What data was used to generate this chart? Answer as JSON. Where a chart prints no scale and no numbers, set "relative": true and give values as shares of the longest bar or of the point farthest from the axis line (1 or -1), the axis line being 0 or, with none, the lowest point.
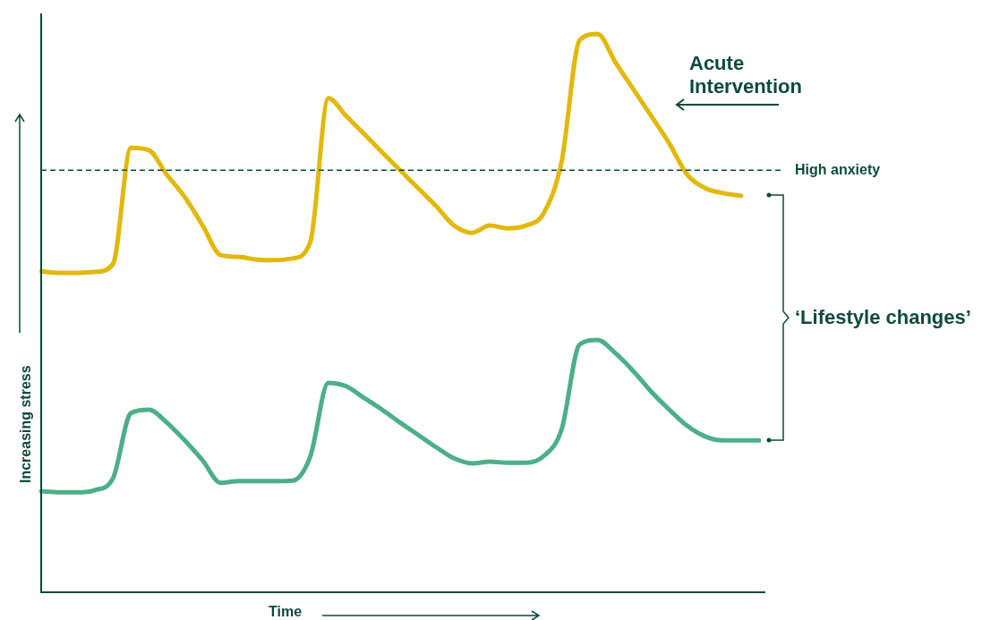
{
  "chart_data": {
    "type": "line",
    "relative": true,
    "xlabel": "Time",
    "ylabel": "Increasing stress",
    "categories": [
      null,
      null,
      null,
      null,
      null,
      null,
      null,
      null,
      null,
      null,
      null,
      null,
      null,
      null,
      null,
      null,
      null,
      null,
      null,
      null,
      null,
      null,
      null,
      null,
      null,
      null,
      null,
      null,
      null,
      null,
      null,
      null,
      null,
      null,
      null,
      null,
      null,
      null,
      null,
      null,
      null
    ],
    "series": [
      {
        "color": "#e2b80a",
        "values": [
          0.575,
          0.572,
          0.572,
          0.574,
          0.588,
          0.796,
          0.792,
          0.748,
          0.708,
          0.657,
          0.604,
          0.601,
          0.596,
          0.595,
          0.598,
          0.628,
          0.885,
          0.853,
          0.821,
          0.788,
          0.756,
          0.724,
          0.692,
          0.657,
          0.644,
          0.657,
          0.652,
          0.657,
          0.679,
          0.772,
          0.989,
          1.0,
          0.949,
          0.901,
          0.853,
          0.804,
          0.748,
          0.724,
          0.715,
          0.71,
          null
        ]
      },
      {
        "color": "#4caf8a",
        "values": [
          0.181,
          0.179,
          0.179,
          0.183,
          0.204,
          0.321,
          0.327,
          0.304,
          0.272,
          0.236,
          0.196,
          0.199,
          0.199,
          0.199,
          0.2,
          0.244,
          0.375,
          0.369,
          0.348,
          0.327,
          0.304,
          0.282,
          0.26,
          0.24,
          0.231,
          0.234,
          0.232,
          0.232,
          0.244,
          0.292,
          0.444,
          0.452,
          0.428,
          0.396,
          0.359,
          0.327,
          0.298,
          0.279,
          0.272,
          0.272,
          0.272
        ]
      }
    ],
    "ref_lines": [
      {
        "axis": "y",
        "value": 0.756,
        "label": "High anxiety",
        "color": "#0d4a3c",
        "line_style": "dashed"
      }
    ],
    "annotations": [
      "Acute Intervention",
      "‘Lifestyle changes’"
    ],
    "legend": false,
    "marker": "none",
    "line_style": "solid"
  }
}
